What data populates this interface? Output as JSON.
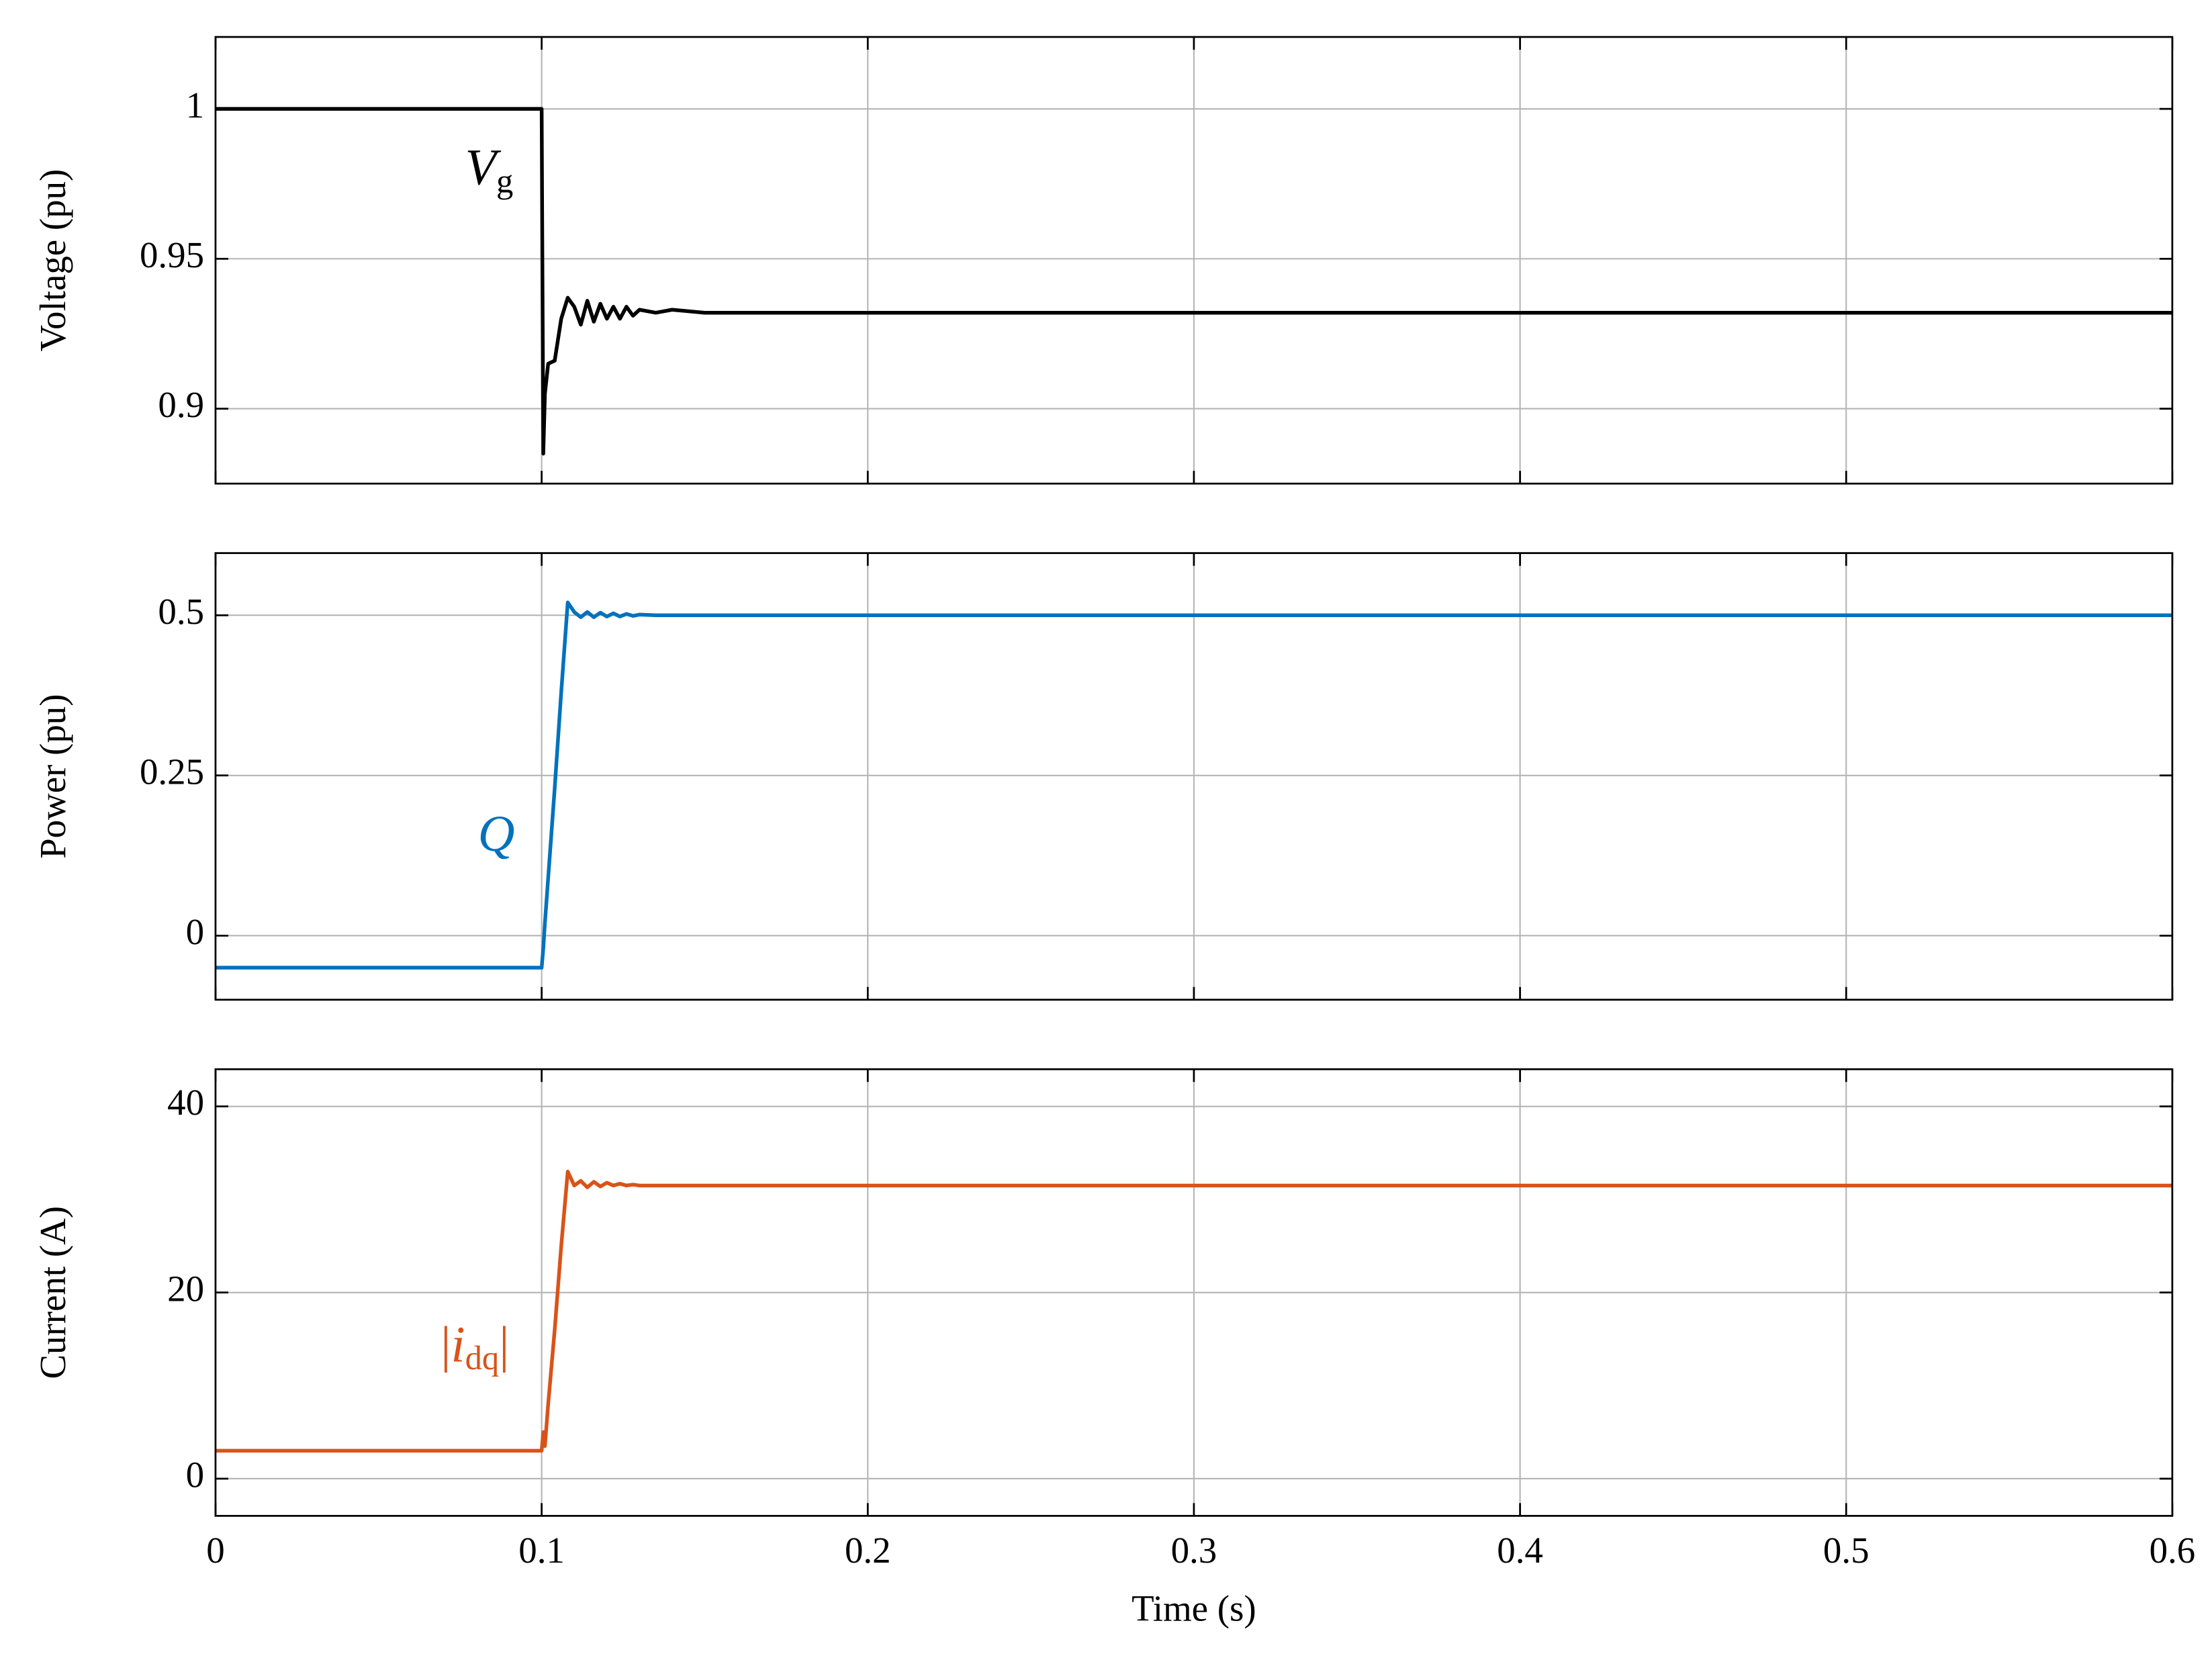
{
  "chart_data": [
    {
      "type": "line",
      "ylabel": "Voltage (pu)",
      "x": [
        0,
        0.05,
        0.0995,
        0.1,
        0.1005,
        0.101,
        0.102,
        0.104,
        0.106,
        0.108,
        0.11,
        0.112,
        0.114,
        0.116,
        0.118,
        0.12,
        0.122,
        0.124,
        0.126,
        0.128,
        0.13,
        0.135,
        0.14,
        0.15,
        0.16,
        0.18,
        0.2,
        0.3,
        0.4,
        0.5,
        0.6
      ],
      "series": [
        {
          "name": "Vg",
          "color": "#000000",
          "values": [
            1,
            1,
            1,
            1,
            0.885,
            0.905,
            0.915,
            0.916,
            0.93,
            0.937,
            0.934,
            0.928,
            0.936,
            0.929,
            0.935,
            0.93,
            0.934,
            0.93,
            0.934,
            0.931,
            0.933,
            0.932,
            0.933,
            0.932,
            0.932,
            0.932,
            0.932,
            0.932,
            0.932,
            0.932,
            0.932
          ]
        }
      ],
      "annotation": [
        {
          "text": "V",
          "style": "italic"
        },
        {
          "text": "g",
          "sub": true
        }
      ],
      "xlim": [
        0,
        0.6
      ],
      "xticks": [
        0,
        0.1,
        0.2,
        0.3,
        0.4,
        0.5,
        0.6
      ],
      "ylim": [
        0.875,
        1.024
      ],
      "yticks": [
        0.9,
        0.95,
        1
      ],
      "grid": true
    },
    {
      "type": "line",
      "ylabel": "Power (pu)",
      "x": [
        0,
        0.05,
        0.0995,
        0.1,
        0.1005,
        0.101,
        0.102,
        0.104,
        0.106,
        0.108,
        0.11,
        0.112,
        0.114,
        0.116,
        0.118,
        0.12,
        0.122,
        0.124,
        0.126,
        0.128,
        0.13,
        0.135,
        0.14,
        0.15,
        0.16,
        0.18,
        0.2,
        0.3,
        0.4,
        0.5,
        0.6
      ],
      "series": [
        {
          "name": "Q",
          "color": "#0072bd",
          "values": [
            -0.05,
            -0.05,
            -0.05,
            -0.05,
            -0.02,
            0.02,
            0.09,
            0.23,
            0.38,
            0.52,
            0.505,
            0.497,
            0.505,
            0.497,
            0.504,
            0.498,
            0.503,
            0.498,
            0.502,
            0.499,
            0.501,
            0.5,
            0.5,
            0.5,
            0.5,
            0.5,
            0.5,
            0.5,
            0.5,
            0.5,
            0.5
          ]
        }
      ],
      "annotation": [
        {
          "text": "Q",
          "style": "italic"
        }
      ],
      "xlim": [
        0,
        0.6
      ],
      "xticks": [
        0,
        0.1,
        0.2,
        0.3,
        0.4,
        0.5,
        0.6
      ],
      "ylim": [
        -0.1,
        0.597
      ],
      "yticks": [
        0,
        0.25,
        0.5
      ],
      "grid": true
    },
    {
      "type": "line",
      "ylabel": "Current (A)",
      "xlabel": "Time (s)",
      "x": [
        0,
        0.05,
        0.0995,
        0.1,
        0.1005,
        0.101,
        0.102,
        0.104,
        0.106,
        0.108,
        0.11,
        0.112,
        0.114,
        0.116,
        0.118,
        0.12,
        0.122,
        0.124,
        0.126,
        0.128,
        0.13,
        0.135,
        0.14,
        0.15,
        0.16,
        0.18,
        0.2,
        0.3,
        0.4,
        0.5,
        0.6
      ],
      "series": [
        {
          "name": "|idq|",
          "color": "#d95319",
          "values": [
            3,
            3,
            3,
            3,
            5,
            3.5,
            8,
            16,
            25,
            33,
            31.5,
            32,
            31.3,
            31.9,
            31.4,
            31.8,
            31.5,
            31.7,
            31.5,
            31.6,
            31.5,
            31.5,
            31.5,
            31.5,
            31.5,
            31.5,
            31.5,
            31.5,
            31.5,
            31.5,
            31.5
          ]
        }
      ],
      "annotation": [
        {
          "text": "|"
        },
        {
          "text": "i",
          "style": "italic"
        },
        {
          "text": "dq",
          "sub": true
        },
        {
          "text": "|"
        }
      ],
      "xlim": [
        0,
        0.6
      ],
      "xticks": [
        0,
        0.1,
        0.2,
        0.3,
        0.4,
        0.5,
        0.6
      ],
      "ylim": [
        -4,
        44
      ],
      "yticks": [
        0,
        20,
        40
      ],
      "grid": true
    }
  ]
}
